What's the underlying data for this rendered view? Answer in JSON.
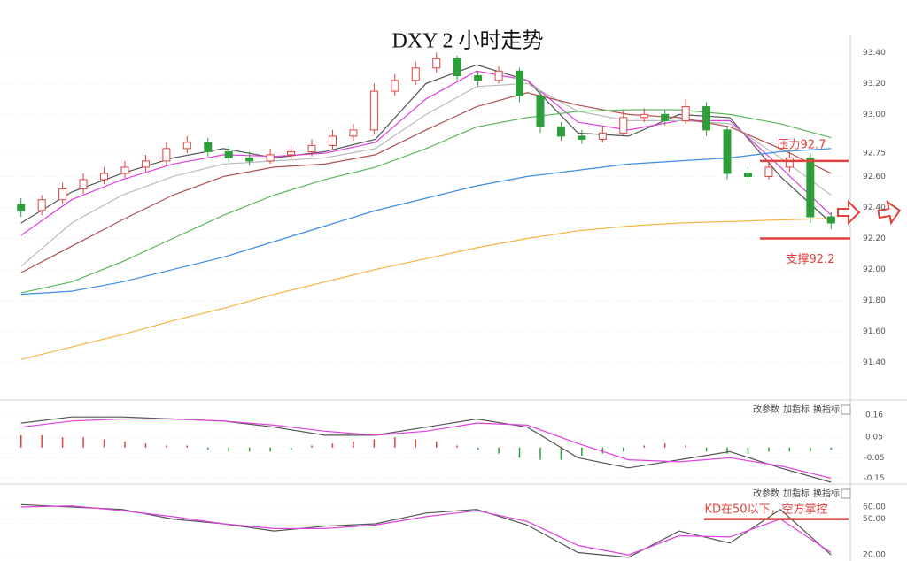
{
  "chart_data": [
    {
      "type": "candlestick",
      "title": "DXY 2 小时走势",
      "open": [
        92.42,
        92.38,
        92.45,
        92.52,
        92.58,
        92.62,
        92.66,
        92.7,
        92.78,
        92.82,
        92.76,
        92.72,
        92.7,
        92.74,
        92.76,
        92.8,
        92.86,
        92.9,
        93.15,
        93.22,
        93.3,
        93.36,
        93.25,
        93.22,
        93.28,
        93.12,
        92.92,
        92.86,
        92.84,
        92.88,
        92.98,
        93.0,
        92.96,
        93.05,
        92.9,
        92.62,
        92.6,
        92.66,
        92.72,
        92.34
      ],
      "high": [
        92.46,
        92.48,
        92.56,
        92.62,
        92.66,
        92.7,
        92.74,
        92.82,
        92.86,
        92.85,
        92.8,
        92.76,
        92.78,
        92.8,
        92.84,
        92.9,
        92.94,
        93.2,
        93.26,
        93.34,
        93.4,
        93.38,
        93.28,
        93.31,
        93.3,
        93.15,
        92.95,
        92.9,
        92.92,
        93.02,
        93.04,
        93.03,
        93.1,
        93.08,
        92.92,
        92.66,
        92.7,
        92.76,
        92.75,
        92.37
      ],
      "low": [
        92.34,
        92.35,
        92.42,
        92.49,
        92.55,
        92.59,
        92.63,
        92.67,
        92.75,
        92.73,
        92.69,
        92.67,
        92.68,
        92.71,
        92.73,
        92.77,
        92.83,
        92.87,
        93.12,
        93.19,
        93.27,
        93.22,
        93.18,
        93.2,
        93.08,
        92.88,
        92.83,
        92.81,
        92.82,
        92.86,
        92.95,
        92.93,
        92.94,
        92.86,
        92.58,
        92.56,
        92.58,
        92.63,
        92.3,
        92.26
      ],
      "close": [
        92.38,
        92.45,
        92.52,
        92.58,
        92.62,
        92.66,
        92.7,
        92.78,
        92.82,
        92.76,
        92.72,
        92.7,
        92.74,
        92.76,
        92.8,
        92.86,
        92.9,
        93.15,
        93.22,
        93.3,
        93.36,
        93.25,
        93.22,
        93.28,
        93.12,
        92.92,
        92.86,
        92.84,
        92.88,
        92.98,
        93.0,
        92.96,
        93.05,
        92.9,
        92.62,
        92.6,
        92.66,
        92.72,
        92.34,
        92.3
      ],
      "up_color": "#e0413c",
      "down_color": "#2e9e3a",
      "series": [
        {
          "color": "#555555",
          "values": [
            92.3,
            92.5,
            92.62,
            92.72,
            92.78,
            92.72,
            92.76,
            92.84,
            93.2,
            93.32,
            93.22,
            92.88,
            92.86,
            93.0,
            92.98,
            92.6,
            92.3
          ]
        },
        {
          "color": "#e040e0",
          "values": [
            92.22,
            92.45,
            92.58,
            92.68,
            92.74,
            92.73,
            92.75,
            92.82,
            93.1,
            93.28,
            93.22,
            92.95,
            92.9,
            92.96,
            92.96,
            92.66,
            92.35
          ]
        },
        {
          "color": "#bbbbbb",
          "values": [
            92.02,
            92.3,
            92.48,
            92.6,
            92.68,
            92.7,
            92.72,
            92.78,
            93.0,
            93.18,
            93.2,
            93.02,
            92.96,
            92.96,
            92.94,
            92.72,
            92.48
          ]
        },
        {
          "color": "#b05050",
          "values": [
            91.98,
            92.15,
            92.32,
            92.48,
            92.6,
            92.66,
            92.68,
            92.74,
            92.9,
            93.05,
            93.14,
            93.06,
            93.0,
            92.98,
            92.92,
            92.78,
            92.62
          ]
        },
        {
          "color": "#5cb85c",
          "values": [
            91.85,
            91.92,
            92.05,
            92.2,
            92.35,
            92.48,
            92.58,
            92.66,
            92.78,
            92.92,
            92.98,
            93.02,
            93.03,
            93.03,
            93.0,
            92.94,
            92.85
          ]
        },
        {
          "color": "#3a8ee6",
          "values": [
            91.84,
            91.86,
            91.92,
            92.0,
            92.08,
            92.18,
            92.28,
            92.38,
            92.46,
            92.54,
            92.6,
            92.64,
            92.68,
            92.7,
            92.72,
            92.76,
            92.78
          ]
        },
        {
          "color": "#f5b342",
          "values": [
            91.42,
            91.5,
            91.58,
            91.67,
            91.75,
            91.84,
            91.92,
            92.0,
            92.07,
            92.14,
            92.2,
            92.25,
            92.28,
            92.3,
            92.31,
            92.32,
            92.33
          ]
        }
      ],
      "ylim": [
        91.17,
        93.51
      ],
      "yticks": [
        {
          "value": 93.4,
          "label": "93.40"
        },
        {
          "value": 93.2,
          "label": "93.20"
        },
        {
          "value": 93.0,
          "label": "93.00"
        },
        92.75,
        {
          "value": 92.6,
          "label": "92.60"
        },
        {
          "value": 92.4,
          "label": "92.40"
        },
        {
          "value": 92.2,
          "label": "92.20"
        },
        {
          "value": 92.0,
          "label": "92.00"
        },
        {
          "value": 91.8,
          "label": "91.80"
        },
        {
          "value": 91.6,
          "label": "91.60"
        },
        {
          "value": 91.4,
          "label": "91.40"
        }
      ],
      "annotations": [
        {
          "text": "压力92.7",
          "value": 92.7,
          "color": "#e0413c"
        },
        {
          "text": "支撑92.2",
          "value": 92.2,
          "color": "#e0413c"
        }
      ]
    },
    {
      "type": "macd",
      "series": [
        {
          "color": "#555555",
          "values": [
            0.12,
            0.15,
            0.15,
            0.14,
            0.13,
            0.1,
            0.06,
            0.06,
            0.1,
            0.14,
            0.1,
            -0.05,
            -0.1,
            -0.06,
            -0.02,
            -0.1,
            -0.17
          ]
        },
        {
          "color": "#e040e0",
          "values": [
            0.1,
            0.13,
            0.14,
            0.14,
            0.13,
            0.11,
            0.08,
            0.06,
            0.08,
            0.12,
            0.11,
            0.02,
            -0.06,
            -0.07,
            -0.05,
            -0.09,
            -0.15
          ]
        }
      ],
      "histogram": {
        "values": [
          0.06,
          0.06,
          0.05,
          0.05,
          0.04,
          0.03,
          0.02,
          0.01,
          0.01,
          -0.01,
          -0.02,
          -0.02,
          -0.02,
          -0.01,
          0.01,
          0.02,
          0.03,
          0.04,
          0.05,
          0.04,
          0.03,
          0.01,
          -0.01,
          -0.03,
          -0.05,
          -0.06,
          -0.06,
          -0.04,
          -0.03,
          -0.02,
          0.01,
          0.02,
          0.01,
          -0.02,
          -0.03,
          -0.03,
          -0.02,
          -0.02,
          -0.02,
          -0.01
        ],
        "up_color": "#e0413c",
        "down_color": "#2e9e3a"
      },
      "ylim": [
        -0.17,
        0.22
      ],
      "yticks": [
        0.16,
        0.05,
        -0.05,
        -0.15
      ],
      "buttons": [
        "改参数",
        "加指标",
        "换指标"
      ]
    },
    {
      "type": "kd",
      "series": [
        {
          "color": "#555555",
          "values": [
            62,
            60,
            58,
            50,
            46,
            40,
            44,
            46,
            55,
            58,
            45,
            22,
            18,
            40,
            30,
            58,
            20
          ]
        },
        {
          "color": "#e040e0",
          "values": [
            60,
            61,
            57,
            52,
            46,
            42,
            42,
            45,
            52,
            57,
            48,
            28,
            20,
            36,
            35,
            50,
            22
          ]
        }
      ],
      "ylim": [
        15,
        77
      ],
      "yticks": [
        {
          "value": 60,
          "label": "60.00"
        },
        {
          "value": 50,
          "label": "50.00"
        },
        {
          "value": 20,
          "label": "20.00"
        }
      ],
      "buttons": [
        "改参数",
        "加指标",
        "换指标"
      ],
      "annotations": [
        {
          "text": "KD在50以下，空方掌控",
          "value": 50,
          "color": "#e0413c"
        }
      ]
    }
  ]
}
